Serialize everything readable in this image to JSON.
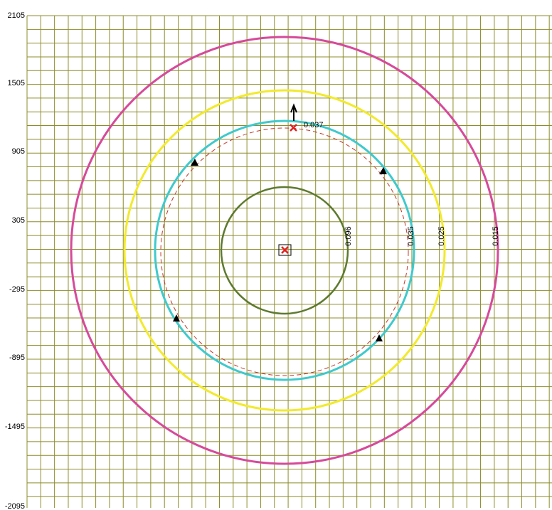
{
  "y_axis": {
    "labels": [
      "2105",
      "1505",
      "905",
      "305",
      "-295",
      "-895",
      "-1495",
      "-2095"
    ]
  },
  "contours": [
    {
      "label": "0.015",
      "color": "#d64a9a"
    },
    {
      "label": "0.025",
      "color": "#f2ea2c"
    },
    {
      "label": "0.035",
      "color": "#3fc9cc"
    },
    {
      "label": "0.096",
      "color": "#5e7a2e"
    }
  ],
  "point_label": "0.037"
}
